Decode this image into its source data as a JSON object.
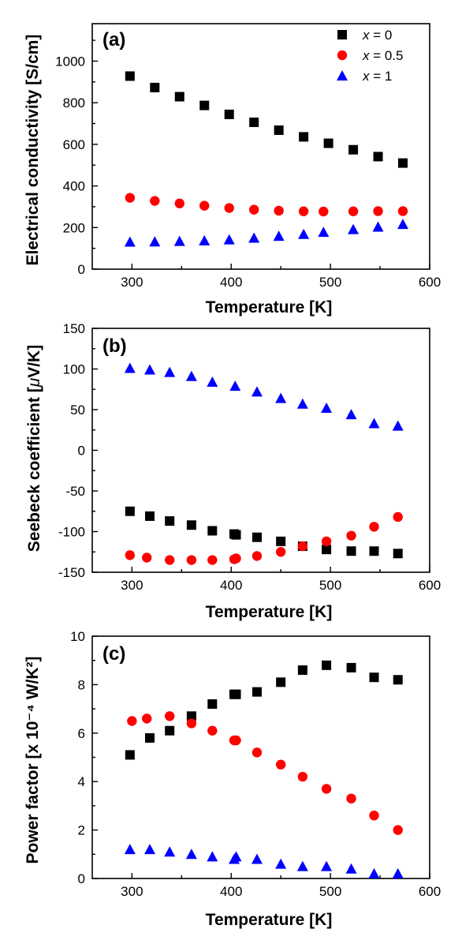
{
  "chart_data": [
    {
      "type": "scatter",
      "panel_label": "(a)",
      "xlabel": "Temperature [K]",
      "ylabel": "Electrical conductivity [S/cm]",
      "xlim": [
        260,
        600
      ],
      "ylim": [
        0,
        1180
      ],
      "xticks": [
        300,
        400,
        500,
        600
      ],
      "yticks": [
        0,
        200,
        400,
        600,
        800,
        1000
      ],
      "legend_position": "top-right",
      "series": [
        {
          "name": "x = 0",
          "name_prefix": "x",
          "name_suffix": " = 0",
          "color": "#000000",
          "marker": "square",
          "x": [
            298,
            323,
            348,
            373,
            398,
            423,
            448,
            473,
            498,
            523,
            548,
            573
          ],
          "y": [
            928,
            873,
            829,
            787,
            744,
            706,
            668,
            636,
            605,
            574,
            541,
            510
          ]
        },
        {
          "name": "x = 0.5",
          "name_prefix": "x",
          "name_suffix": " = 0.5",
          "color": "#ff0000",
          "marker": "circle",
          "x": [
            298,
            323,
            348,
            373,
            398,
            423,
            448,
            473,
            493,
            523,
            548,
            573
          ],
          "y": [
            343,
            328,
            316,
            305,
            294,
            286,
            281,
            278,
            277,
            278,
            279,
            279
          ]
        },
        {
          "name": "x = 1",
          "name_prefix": "x",
          "name_suffix": " = 1",
          "color": "#0000ff",
          "marker": "triangle",
          "x": [
            298,
            323,
            348,
            373,
            398,
            423,
            448,
            473,
            493,
            523,
            548,
            573
          ],
          "y": [
            131,
            132,
            134,
            137,
            142,
            150,
            159,
            168,
            178,
            191,
            203,
            216
          ]
        }
      ]
    },
    {
      "type": "scatter",
      "panel_label": "(b)",
      "xlabel": "Temperature [K]",
      "ylabel": "Seebeck coefficient [μV/K]",
      "ylabel_prefix": "Seebeck coefficient [",
      "ylabel_greek": "μ",
      "ylabel_suffix": "V/K]",
      "xlim": [
        260,
        600
      ],
      "ylim": [
        -150,
        150
      ],
      "xticks": [
        300,
        400,
        500,
        600
      ],
      "yticks": [
        -150,
        -100,
        -50,
        0,
        50,
        100,
        150
      ],
      "series": [
        {
          "name": "x = 0",
          "color": "#000000",
          "marker": "square",
          "x": [
            298,
            318,
            338,
            360,
            381,
            403,
            405,
            426,
            450,
            472,
            496,
            521,
            544,
            568
          ],
          "y": [
            -75,
            -81,
            -87,
            -92,
            -99,
            -103,
            -104,
            -107,
            -112,
            -118,
            -122,
            -124,
            -124,
            -127
          ]
        },
        {
          "name": "x = 0.5",
          "color": "#ff0000",
          "marker": "circle",
          "x": [
            298,
            315,
            338,
            360,
            381,
            403,
            405,
            426,
            450,
            472,
            496,
            521,
            544,
            568
          ],
          "y": [
            -129,
            -132,
            -135,
            -135,
            -135,
            -134,
            -133,
            -130,
            -125,
            -118,
            -112,
            -105,
            -94,
            -82
          ]
        },
        {
          "name": "x = 1",
          "color": "#0000ff",
          "marker": "triangle",
          "x": [
            298,
            318,
            338,
            360,
            381,
            404,
            426,
            450,
            472,
            496,
            521,
            544,
            568
          ],
          "y": [
            101,
            99,
            96,
            91,
            84,
            79,
            72,
            64,
            57,
            52,
            44,
            33,
            30
          ]
        }
      ]
    },
    {
      "type": "scatter",
      "panel_label": "(c)",
      "xlabel": "Temperature [K]",
      "ylabel": "Power factor [x 10⁻⁴ W/K²]",
      "xlim": [
        260,
        600
      ],
      "ylim": [
        0,
        10
      ],
      "xticks": [
        300,
        400,
        500,
        600
      ],
      "yticks": [
        0,
        2,
        4,
        6,
        8,
        10
      ],
      "series": [
        {
          "name": "x = 0",
          "color": "#000000",
          "marker": "square",
          "x": [
            298,
            318,
            338,
            360,
            381,
            403,
            405,
            426,
            450,
            472,
            496,
            521,
            544,
            568
          ],
          "y": [
            5.1,
            5.8,
            6.1,
            6.7,
            7.2,
            7.6,
            7.6,
            7.7,
            8.1,
            8.6,
            8.8,
            8.7,
            8.3,
            8.2
          ]
        },
        {
          "name": "x = 0.5",
          "color": "#ff0000",
          "marker": "circle",
          "x": [
            300,
            315,
            338,
            360,
            381,
            403,
            405,
            426,
            450,
            472,
            496,
            521,
            544,
            568
          ],
          "y": [
            6.5,
            6.6,
            6.7,
            6.4,
            6.1,
            5.7,
            5.7,
            5.2,
            4.7,
            4.2,
            3.7,
            3.3,
            2.6,
            2.0
          ]
        },
        {
          "name": "x = 1",
          "color": "#0000ff",
          "marker": "triangle",
          "x": [
            298,
            318,
            338,
            360,
            381,
            403,
            405,
            426,
            450,
            472,
            496,
            521,
            544,
            568
          ],
          "y": [
            1.2,
            1.2,
            1.1,
            1.0,
            0.9,
            0.8,
            0.9,
            0.8,
            0.6,
            0.5,
            0.5,
            0.4,
            0.2,
            0.2
          ]
        }
      ]
    }
  ]
}
